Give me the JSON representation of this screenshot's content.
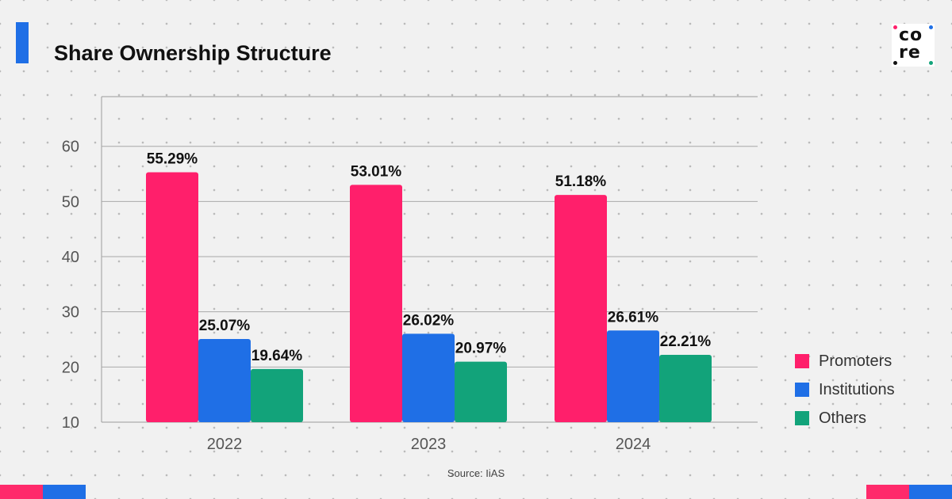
{
  "header": {
    "title": "Share Ownership Structure"
  },
  "logo": {
    "line1": "co",
    "line2": "re",
    "dot_colors": [
      "#ff1f6b",
      "#1f6fe6",
      "#12a37a",
      "#111111"
    ]
  },
  "colors": {
    "accent": "#1f6fe6",
    "corner_pink": "#ff2a6b",
    "corner_blue": "#1f6fe6"
  },
  "footer": {
    "source": "Source: IiAS"
  },
  "chart_data": {
    "type": "bar",
    "title": "Share Ownership Structure",
    "categories": [
      "2022",
      "2023",
      "2024"
    ],
    "series": [
      {
        "name": "Promoters",
        "color": "#ff1f6b",
        "values": [
          55.29,
          53.01,
          51.18
        ],
        "labels": [
          "55.29%",
          "53.01%",
          "51.18%"
        ]
      },
      {
        "name": "Institutions",
        "color": "#1f6fe6",
        "values": [
          25.07,
          26.02,
          26.61
        ],
        "labels": [
          "25.07%",
          "26.02%",
          "26.61%"
        ]
      },
      {
        "name": "Others",
        "color": "#12a37a",
        "values": [
          19.64,
          20.97,
          22.21
        ],
        "labels": [
          "19.64%",
          "20.97%",
          "22.21%"
        ]
      }
    ],
    "yticks": [
      10,
      20,
      30,
      40,
      50,
      60
    ],
    "ylim": [
      10,
      69
    ],
    "grid": true,
    "legend": "right",
    "xlabel": "",
    "ylabel": ""
  }
}
